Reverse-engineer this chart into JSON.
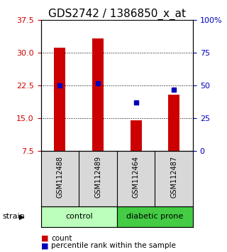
{
  "title": "GDS2742 / 1386850_x_at",
  "samples": [
    "GSM112488",
    "GSM112489",
    "GSM112464",
    "GSM112487"
  ],
  "counts": [
    31.2,
    33.3,
    14.6,
    20.5
  ],
  "percentiles": [
    50,
    52,
    37,
    47
  ],
  "ylim_left": [
    7.5,
    37.5
  ],
  "yticks_left": [
    7.5,
    15,
    22.5,
    30,
    37.5
  ],
  "ylim_right": [
    0,
    100
  ],
  "yticks_right": [
    0,
    25,
    50,
    75,
    100
  ],
  "ytick_labels_right": [
    "0",
    "25",
    "50",
    "75",
    "100%"
  ],
  "bar_color": "#cc0000",
  "dot_color": "#0000bb",
  "bar_width": 0.3,
  "groups": [
    {
      "label": "control",
      "indices": [
        0,
        1
      ],
      "color": "#bbffbb"
    },
    {
      "label": "diabetic prone",
      "indices": [
        2,
        3
      ],
      "color": "#44cc44"
    }
  ],
  "group_label_left": "strain",
  "left_ytick_color": "#cc0000",
  "right_ytick_color": "#0000bb",
  "title_fontsize": 11,
  "tick_fontsize": 8,
  "sample_fontsize": 7,
  "background_color": "#d8d8d8",
  "plot_bg": "#ffffff"
}
